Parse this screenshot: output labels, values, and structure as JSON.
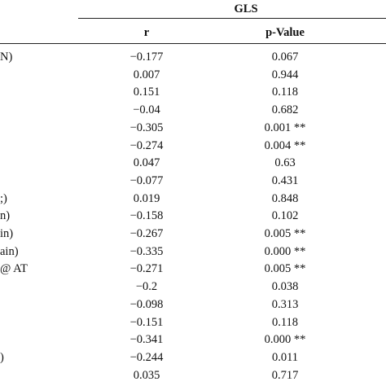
{
  "table": {
    "group": "GLS",
    "columns": [
      "r",
      "p-Value"
    ],
    "rows": [
      {
        "label": "N)",
        "r": "−0.177",
        "p": "0.067"
      },
      {
        "r": "0.007",
        "p": "0.944"
      },
      {
        "r": "0.151",
        "p": "0.118"
      },
      {
        "r": "−0.04",
        "p": "0.682"
      },
      {
        "r": "−0.305",
        "p": "0.001 **"
      },
      {
        "r": "−0.274",
        "p": "0.004 **"
      },
      {
        "r": "0.047",
        "p": "0.63"
      },
      {
        "r": "−0.077",
        "p": "0.431"
      },
      {
        "label": ";)",
        "r": "0.019",
        "p": "0.848"
      },
      {
        "label": "n)",
        "r": "−0.158",
        "p": "0.102"
      },
      {
        "label": "in)",
        "r": "−0.267",
        "p": "0.005 **"
      },
      {
        "label": "ain)",
        "r": "−0.335",
        "p": "0.000 **"
      },
      {
        "label": "@ AT",
        "r": "−0.271",
        "p": "0.005 **"
      },
      {
        "r": "−0.2",
        "p": "0.038"
      },
      {
        "r": "−0.098",
        "p": "0.313"
      },
      {
        "r": "−0.151",
        "p": "0.118"
      },
      {
        "r": "−0.341",
        "p": "0.000 **"
      },
      {
        "label": ")",
        "r": "−0.244",
        "p": "0.011"
      },
      {
        "r": "0.035",
        "p": "0.717"
      }
    ]
  }
}
